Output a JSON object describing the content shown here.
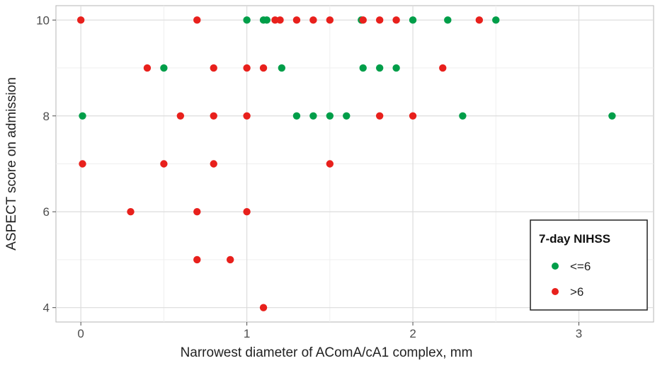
{
  "chart_data": {
    "type": "scatter",
    "xlabel": "Narrowest diameter of AComA/cA1 complex, mm",
    "ylabel": "ASPECT score on admission",
    "xlim": [
      -0.15,
      3.45
    ],
    "ylim": [
      3.7,
      10.3
    ],
    "x_ticks": [
      0,
      1,
      2,
      3
    ],
    "y_ticks": [
      4,
      6,
      8,
      10
    ],
    "x_tick_labels": [
      "0",
      "1",
      "2",
      "3"
    ],
    "y_tick_labels": [
      "4",
      "6",
      "8",
      "10"
    ],
    "grid": true,
    "legend": {
      "title": "7-day NIHSS",
      "placement": "bottom-right"
    },
    "series": [
      {
        "name": "<=6",
        "color": "#009e49",
        "points": [
          [
            1.0,
            10
          ],
          [
            1.1,
            10
          ],
          [
            1.12,
            10
          ],
          [
            1.69,
            10
          ],
          [
            2.0,
            10
          ],
          [
            2.21,
            10
          ],
          [
            2.5,
            10
          ],
          [
            0.5,
            9
          ],
          [
            1.21,
            9
          ],
          [
            1.7,
            9
          ],
          [
            1.8,
            9
          ],
          [
            1.9,
            9
          ],
          [
            0.01,
            8
          ],
          [
            1.3,
            8
          ],
          [
            1.4,
            8
          ],
          [
            1.5,
            8
          ],
          [
            1.6,
            8
          ],
          [
            2.3,
            8
          ],
          [
            3.2,
            8
          ]
        ]
      },
      {
        "name": ">6",
        "color": "#e8201c",
        "points": [
          [
            0.0,
            10
          ],
          [
            0.7,
            10
          ],
          [
            1.17,
            10
          ],
          [
            1.2,
            10
          ],
          [
            1.3,
            10
          ],
          [
            1.4,
            10
          ],
          [
            1.5,
            10
          ],
          [
            1.7,
            10
          ],
          [
            1.8,
            10
          ],
          [
            1.9,
            10
          ],
          [
            2.4,
            10
          ],
          [
            0.4,
            9
          ],
          [
            0.8,
            9
          ],
          [
            1.0,
            9
          ],
          [
            1.1,
            9
          ],
          [
            2.18,
            9
          ],
          [
            0.6,
            8
          ],
          [
            0.8,
            8
          ],
          [
            1.0,
            8
          ],
          [
            1.8,
            8
          ],
          [
            2.0,
            8
          ],
          [
            0.01,
            7
          ],
          [
            0.5,
            7
          ],
          [
            0.8,
            7
          ],
          [
            1.5,
            7
          ],
          [
            0.3,
            6
          ],
          [
            0.7,
            6
          ],
          [
            1.0,
            6
          ],
          [
            0.7,
            5
          ],
          [
            0.9,
            5
          ],
          [
            1.1,
            4
          ]
        ]
      }
    ]
  }
}
